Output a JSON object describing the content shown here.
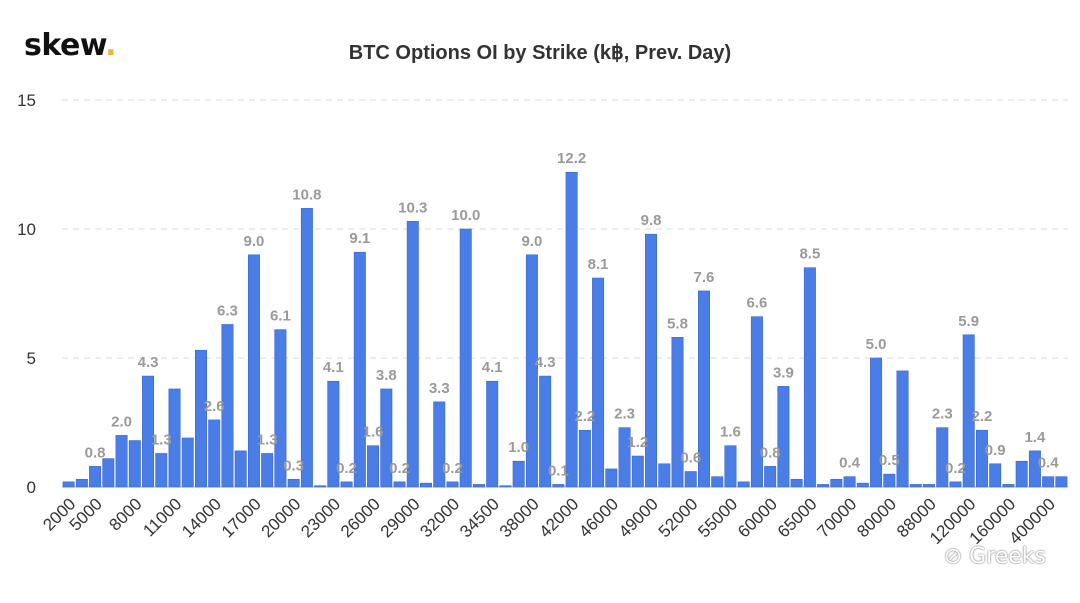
{
  "brand": {
    "name": "skew",
    "dot": "."
  },
  "watermark": "⊘ Greeks",
  "chart_data": {
    "type": "bar",
    "title": "BTC Options OI by Strike (k฿, Prev. Day)",
    "xlabel": "",
    "ylabel": "",
    "ylim": [
      0,
      15
    ],
    "yticks": [
      0,
      5,
      10,
      15
    ],
    "grid": "horizontal-dashed",
    "legend": "none",
    "colors": {
      "bar": "#4a7de6",
      "bar_edge": "#3a68cc",
      "label": "#9a9a9a",
      "grid": "#d9d9d9"
    },
    "categories": [
      "2000",
      "",
      "5000",
      "",
      "",
      "8000",
      "",
      "",
      "11000",
      "",
      "",
      "14000",
      "",
      "",
      "17000",
      "",
      "",
      "20000",
      "",
      "",
      "23000",
      "",
      "",
      "26000",
      "",
      "",
      "29000",
      "",
      "",
      "32000",
      "",
      "",
      "34500",
      "",
      "",
      "38000",
      "",
      "",
      "42000",
      "",
      "",
      "46000",
      "",
      "",
      "49000",
      "",
      "",
      "52000",
      "",
      "",
      "55000",
      "",
      "",
      "60000",
      "",
      "",
      "65000",
      "",
      "",
      "70000",
      "",
      "",
      "80000",
      "",
      "",
      "88000",
      "",
      "",
      "120000",
      "",
      "",
      "160000",
      "",
      "",
      "400000",
      ""
    ],
    "values": [
      0.2,
      0.3,
      0.8,
      1.1,
      2.0,
      1.8,
      4.3,
      1.3,
      3.8,
      1.9,
      5.3,
      2.6,
      6.3,
      1.4,
      9.0,
      1.3,
      6.1,
      0.3,
      10.8,
      0.05,
      4.1,
      0.2,
      9.1,
      1.6,
      3.8,
      0.2,
      10.3,
      0.15,
      3.3,
      0.2,
      10.0,
      0.1,
      4.1,
      0.05,
      1.0,
      9.0,
      4.3,
      0.1,
      12.2,
      2.2,
      8.1,
      0.7,
      2.3,
      1.2,
      9.8,
      0.9,
      5.8,
      0.6,
      7.6,
      0.4,
      1.6,
      0.2,
      6.6,
      0.8,
      3.9,
      0.3,
      8.5,
      0.1,
      0.3,
      0.4,
      0.15,
      5.0,
      0.5,
      4.5,
      0.1,
      0.1,
      2.3,
      0.2,
      5.9,
      2.2,
      0.9,
      0.1,
      1.0,
      1.4,
      0.4,
      0.4
    ],
    "data_labels": [
      "",
      "",
      "0.8",
      "",
      "2.0",
      "",
      "4.3",
      "1.3",
      "",
      "",
      "",
      "2.6",
      "6.3",
      "",
      "9.0",
      "1.3",
      "6.1",
      "0.3",
      "10.8",
      "",
      "4.1",
      "0.2",
      "9.1",
      "1.6",
      "3.8",
      "0.2",
      "10.3",
      "",
      "3.3",
      "0.2",
      "10.0",
      "",
      "4.1",
      "",
      "1.0",
      "9.0",
      "4.3",
      "0.1",
      "12.2",
      "2.2",
      "8.1",
      "",
      "2.3",
      "1.2",
      "9.8",
      "",
      "5.8",
      "0.6",
      "7.6",
      "",
      "1.6",
      "",
      "6.6",
      "0.8",
      "3.9",
      "",
      "8.5",
      "",
      "",
      "0.4",
      "",
      "5.0",
      "0.5",
      "",
      "",
      "",
      "2.3",
      "0.2",
      "5.9",
      "2.2",
      "0.9",
      "",
      "",
      "1.4",
      "0.4",
      ""
    ]
  }
}
